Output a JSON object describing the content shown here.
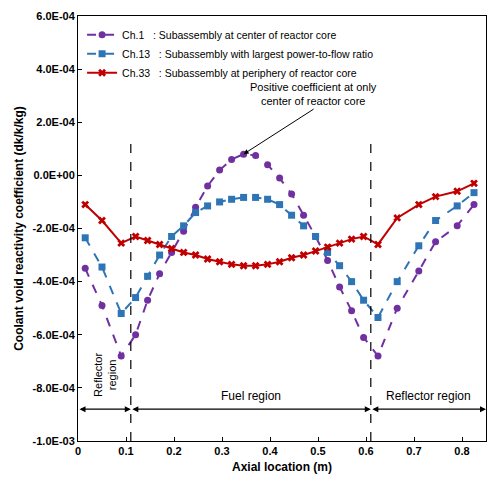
{
  "chart_data": {
    "type": "line",
    "x_label": "Axial location (m)",
    "y_label": "Coolant void reactivity coefficient (dk/k/kg)",
    "x": [
      0.015,
      0.05,
      0.09,
      0.12,
      0.145,
      0.17,
      0.195,
      0.22,
      0.245,
      0.27,
      0.295,
      0.32,
      0.345,
      0.37,
      0.395,
      0.42,
      0.445,
      0.47,
      0.495,
      0.52,
      0.545,
      0.57,
      0.595,
      0.625,
      0.665,
      0.71,
      0.745,
      0.79,
      0.825
    ],
    "series": [
      {
        "name": "Ch.1",
        "description": ": Subassembly at center of reactor core",
        "color": "#7030a0",
        "marker": "circle",
        "line_style": "dash",
        "values": [
          -0.00035,
          -0.00049,
          -0.00068,
          -0.0006,
          -0.00047,
          -0.00037,
          -0.00029,
          -0.00021,
          -0.00012,
          -4e-05,
          2e-05,
          6e-05,
          8e-05,
          7.5e-05,
          4e-05,
          -1e-05,
          -7e-05,
          -0.00015,
          -0.00023,
          -0.00032,
          -0.00042,
          -0.00051,
          -0.00061,
          -0.00068,
          -0.0005,
          -0.00036,
          -0.00025,
          -0.00019,
          -0.00011
        ]
      },
      {
        "name": "Ch.13",
        "description": ": Subassembly with largest power-to-flow ratio",
        "color": "#2e75b6",
        "marker": "square",
        "line_style": "dash",
        "values": [
          -0.000235,
          -0.000345,
          -0.00052,
          -0.00046,
          -0.00038,
          -0.0003,
          -0.00023,
          -0.00019,
          -0.00014,
          -0.000115,
          -0.0001,
          -9e-05,
          -8.3e-05,
          -8.3e-05,
          -9e-05,
          -0.00011,
          -0.00015,
          -0.00019,
          -0.00023,
          -0.00029,
          -0.00034,
          -0.0004,
          -0.00047,
          -0.000535,
          -0.0004,
          -0.000265,
          -0.00017,
          -0.000115,
          -6.5e-05
        ]
      },
      {
        "name": "Ch.33",
        "description": ": Subassembly at periphery of reactor core",
        "color": "#c00000",
        "marker": "x",
        "line_style": "solid",
        "values": [
          -0.00011,
          -0.00017,
          -0.000255,
          -0.00023,
          -0.000245,
          -0.00026,
          -0.000275,
          -0.00029,
          -0.0003,
          -0.000315,
          -0.000325,
          -0.000335,
          -0.00034,
          -0.00034,
          -0.000335,
          -0.000325,
          -0.00031,
          -0.0003,
          -0.000285,
          -0.00027,
          -0.000255,
          -0.00024,
          -0.00023,
          -0.00026,
          -0.00016,
          -0.00011,
          -8e-05,
          -6e-05,
          -3e-05
        ]
      }
    ],
    "xlim": [
      0,
      0.85
    ],
    "xticks": [
      0,
      0.1,
      0.2,
      0.3,
      0.4,
      0.5,
      0.6,
      0.7,
      0.8
    ],
    "ylim": [
      -0.001,
      0.0006
    ],
    "yticks": [
      {
        "value": -0.001,
        "label": "-1.0E-03"
      },
      {
        "value": -0.0008,
        "label": "-8.0E-04"
      },
      {
        "value": -0.0006,
        "label": "-6.0E-04"
      },
      {
        "value": -0.0004,
        "label": "-4.0E-04"
      },
      {
        "value": -0.0002,
        "label": "-2.0E-04"
      },
      {
        "value": 0,
        "label": "0.0E+00"
      },
      {
        "value": 0.0002,
        "label": "2.0E-04"
      },
      {
        "value": 0.0004,
        "label": "4.0E-04"
      },
      {
        "value": 0.0006,
        "label": "6.0E-04"
      }
    ],
    "grid": false,
    "legend": "top-left",
    "region_boundaries": [
      0.11,
      0.61
    ],
    "regions": [
      "Reflector region",
      "Fuel region",
      "Reflector region"
    ],
    "annotations": [
      "Positive coefficient at only center of reactor core"
    ]
  }
}
